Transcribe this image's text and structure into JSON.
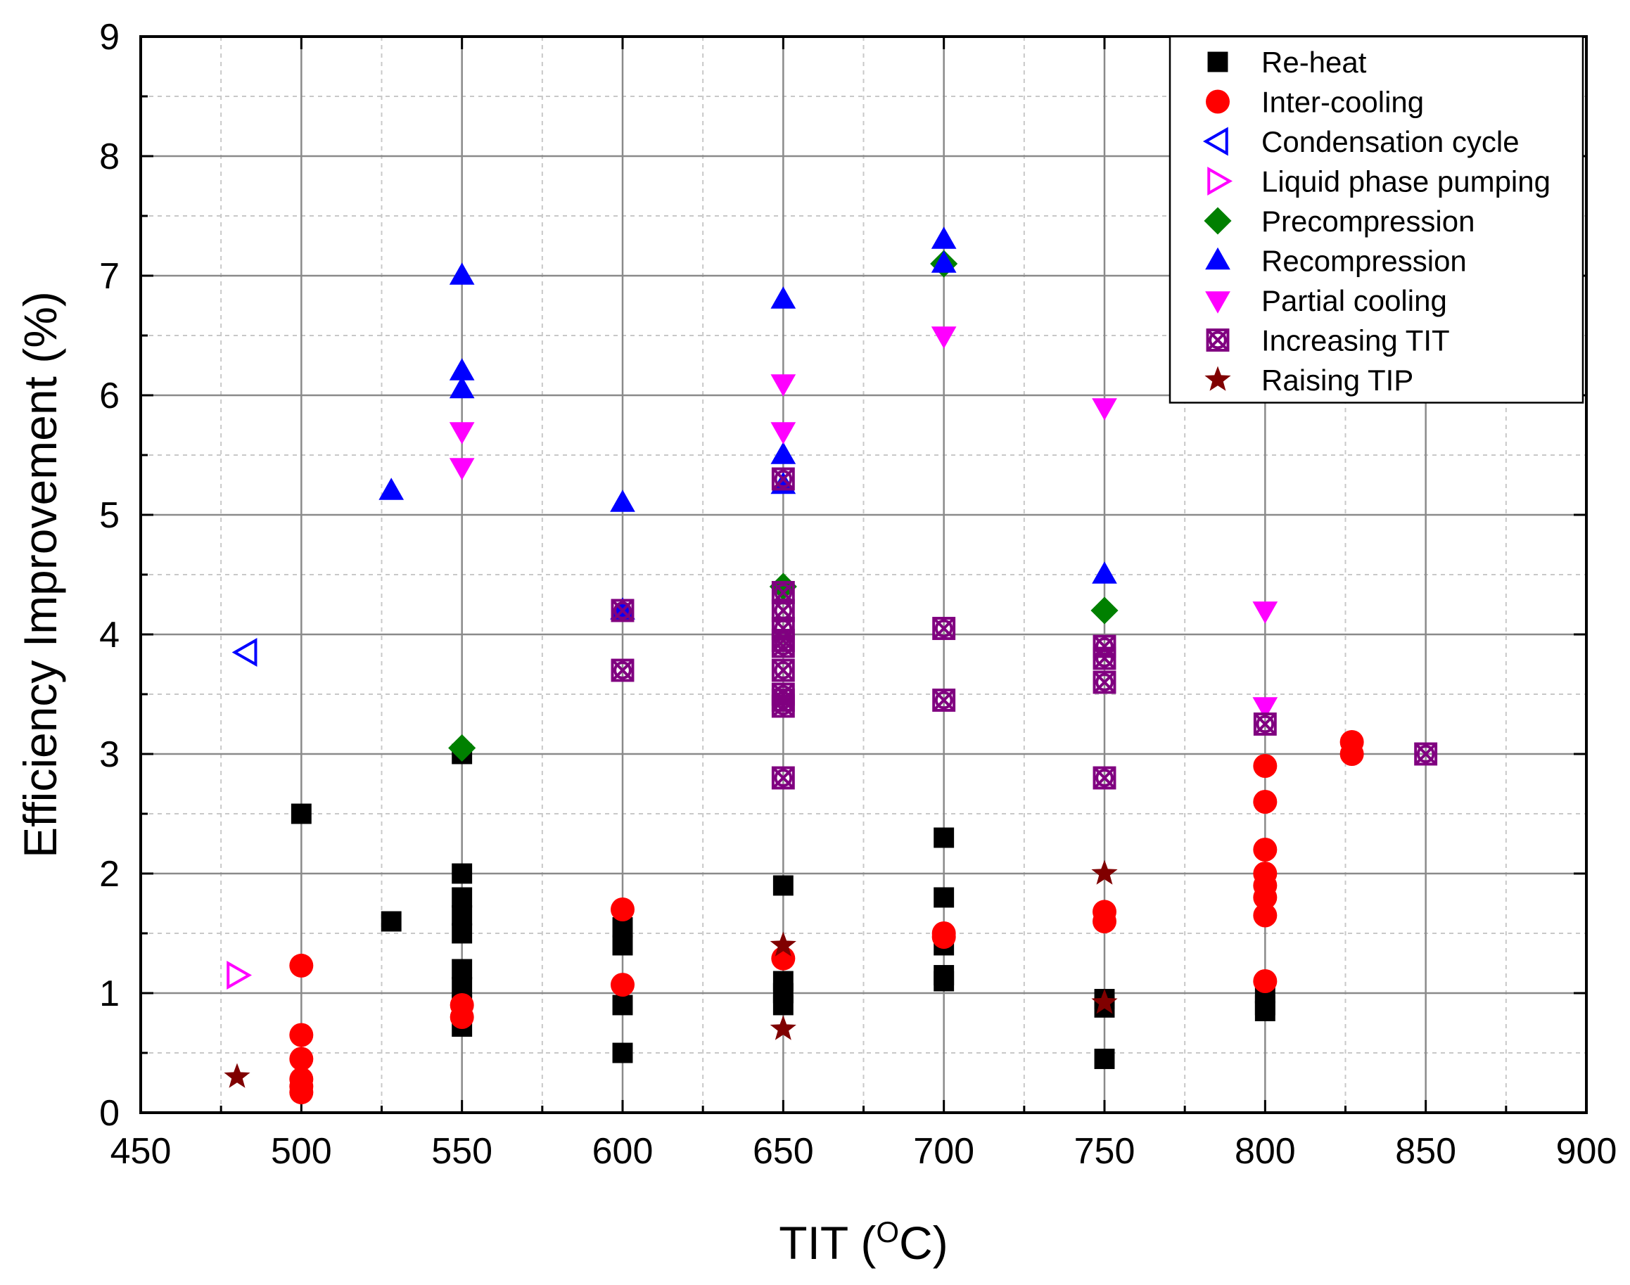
{
  "chart_data": {
    "type": "scatter",
    "title": "",
    "xlabel": "TIT (",
    "xlabel_sup": "O",
    "xlabel_tail": "C)",
    "ylabel": "Efficiency Improvement (%)",
    "xlim": [
      450,
      900
    ],
    "ylim": [
      0,
      9
    ],
    "x_major_ticks": [
      450,
      500,
      550,
      600,
      650,
      700,
      750,
      800,
      850,
      900
    ],
    "y_major_ticks": [
      0,
      1,
      2,
      3,
      4,
      5,
      6,
      7,
      8,
      9
    ],
    "x_minor_step": 25,
    "y_minor_step": 0.5,
    "grid": true,
    "legend_position": "top-right",
    "series": [
      {
        "name": "Re-heat",
        "marker": "square",
        "color": "#000000",
        "points": [
          [
            500,
            2.5
          ],
          [
            528,
            1.6
          ],
          [
            550,
            3.0
          ],
          [
            550,
            2.0
          ],
          [
            550,
            1.8
          ],
          [
            550,
            1.65
          ],
          [
            550,
            1.5
          ],
          [
            550,
            1.2
          ],
          [
            550,
            1.05
          ],
          [
            550,
            0.9
          ],
          [
            550,
            0.72
          ],
          [
            600,
            1.55
          ],
          [
            600,
            1.4
          ],
          [
            600,
            0.9
          ],
          [
            600,
            0.5
          ],
          [
            650,
            1.9
          ],
          [
            650,
            1.1
          ],
          [
            650,
            1.0
          ],
          [
            650,
            0.9
          ],
          [
            700,
            2.3
          ],
          [
            700,
            1.8
          ],
          [
            700,
            1.4
          ],
          [
            700,
            1.15
          ],
          [
            700,
            1.1
          ],
          [
            750,
            0.95
          ],
          [
            750,
            0.88
          ],
          [
            750,
            0.45
          ],
          [
            800,
            1.0
          ],
          [
            800,
            0.9
          ],
          [
            800,
            0.85
          ]
        ]
      },
      {
        "name": "Inter-cooling",
        "marker": "circle",
        "color": "#ff0000",
        "points": [
          [
            500,
            1.23
          ],
          [
            500,
            0.65
          ],
          [
            500,
            0.45
          ],
          [
            500,
            0.28
          ],
          [
            500,
            0.22
          ],
          [
            500,
            0.17
          ],
          [
            550,
            0.9
          ],
          [
            550,
            0.8
          ],
          [
            600,
            1.7
          ],
          [
            600,
            1.07
          ],
          [
            650,
            1.29
          ],
          [
            700,
            1.5
          ],
          [
            700,
            1.47
          ],
          [
            750,
            1.68
          ],
          [
            750,
            1.6
          ],
          [
            800,
            2.9
          ],
          [
            800,
            2.6
          ],
          [
            800,
            2.2
          ],
          [
            800,
            2.0
          ],
          [
            800,
            1.9
          ],
          [
            800,
            1.8
          ],
          [
            800,
            1.65
          ],
          [
            800,
            1.1
          ],
          [
            827,
            3.1
          ],
          [
            827,
            3.0
          ]
        ]
      },
      {
        "name": "Condensation cycle",
        "marker": "triangle-left-open",
        "color": "#0000ff",
        "points": [
          [
            483,
            3.85
          ]
        ]
      },
      {
        "name": "Liquid phase pumping",
        "marker": "triangle-right-open",
        "color": "#ff00ff",
        "points": [
          [
            480,
            1.15
          ]
        ]
      },
      {
        "name": "Precompression",
        "marker": "diamond",
        "color": "#008000",
        "points": [
          [
            550,
            3.05
          ],
          [
            650,
            4.4
          ],
          [
            700,
            7.1
          ],
          [
            750,
            4.2
          ]
        ]
      },
      {
        "name": "Recompression",
        "marker": "triangle-up",
        "color": "#0000ff",
        "points": [
          [
            528,
            5.2
          ],
          [
            550,
            7.0
          ],
          [
            550,
            6.2
          ],
          [
            550,
            6.05
          ],
          [
            600,
            5.1
          ],
          [
            600,
            4.2
          ],
          [
            650,
            6.8
          ],
          [
            650,
            5.5
          ],
          [
            650,
            5.25
          ],
          [
            700,
            7.3
          ],
          [
            700,
            7.1
          ],
          [
            750,
            4.5
          ]
        ]
      },
      {
        "name": "Partial cooling",
        "marker": "triangle-down",
        "color": "#ff00ff",
        "points": [
          [
            550,
            5.7
          ],
          [
            550,
            5.4
          ],
          [
            650,
            6.1
          ],
          [
            650,
            5.7
          ],
          [
            700,
            6.5
          ],
          [
            750,
            5.9
          ],
          [
            800,
            4.2
          ],
          [
            800,
            3.4
          ]
        ]
      },
      {
        "name": "Increasing TIT",
        "marker": "square-x-circle-open",
        "color": "#800080",
        "points": [
          [
            600,
            4.2
          ],
          [
            600,
            3.7
          ],
          [
            650,
            5.3
          ],
          [
            650,
            4.35
          ],
          [
            650,
            4.2
          ],
          [
            650,
            4.05
          ],
          [
            650,
            3.95
          ],
          [
            650,
            3.9
          ],
          [
            650,
            3.7
          ],
          [
            650,
            3.5
          ],
          [
            650,
            3.45
          ],
          [
            650,
            3.4
          ],
          [
            650,
            2.8
          ],
          [
            700,
            4.05
          ],
          [
            700,
            3.45
          ],
          [
            750,
            3.9
          ],
          [
            750,
            3.8
          ],
          [
            750,
            3.6
          ],
          [
            750,
            2.8
          ],
          [
            800,
            3.25
          ],
          [
            850,
            3.0
          ]
        ]
      },
      {
        "name": "Raising TIP",
        "marker": "star",
        "color": "#800000",
        "points": [
          [
            480,
            0.3
          ],
          [
            650,
            1.4
          ],
          [
            650,
            0.7
          ],
          [
            750,
            2.0
          ],
          [
            750,
            0.92
          ]
        ]
      }
    ]
  }
}
